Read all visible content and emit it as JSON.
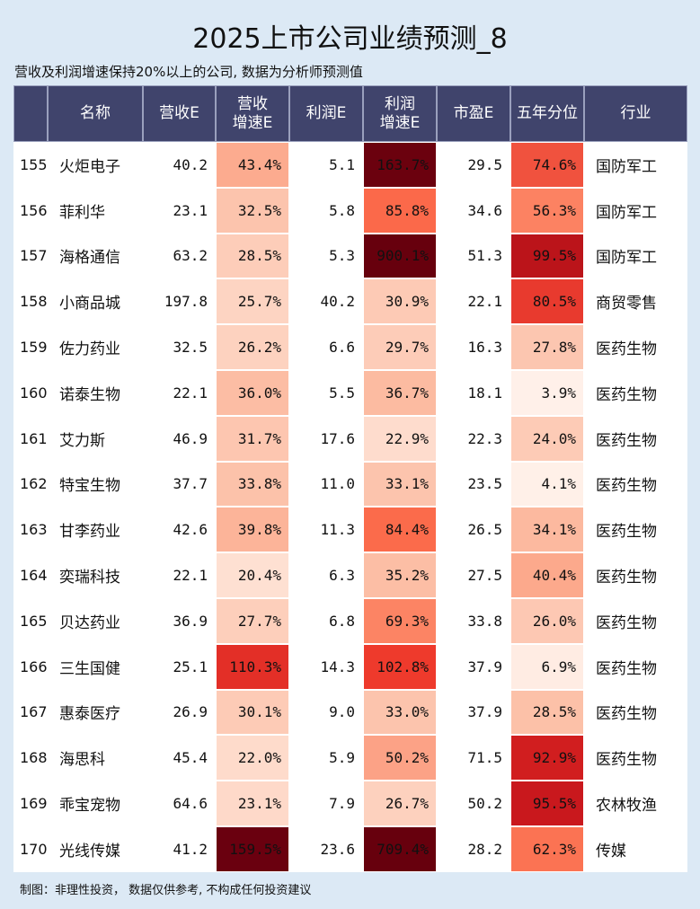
{
  "title": "2025上市公司业绩预测_8",
  "subtitle": "营收及利润增速保持20%以上的公司, 数据为分析师预测值",
  "footer": "制图：非理性投资， 数据仅供参考, 不构成任何投资建议",
  "columns": {
    "idx": "",
    "name": "名称",
    "revenue": "营收E",
    "revenue_growth_line1": "营收",
    "revenue_growth_line2": "增速E",
    "profit": "利润E",
    "profit_growth_line1": "利润",
    "profit_growth_line2": "增速E",
    "pe": "市盈E",
    "pe_pct5y": "五年分位",
    "industry": "行业"
  },
  "colors": {
    "header_bg": "#40446c",
    "page_bg": "#dce9f5"
  },
  "rows": [
    {
      "idx": "155",
      "name": "火炬电子",
      "revenue": "40.2",
      "rev_growth": "43.4%",
      "rev_growth_color": "#fcab8f",
      "profit": "5.1",
      "profit_growth": "163.7%",
      "profit_growth_color": "#6b010e",
      "pe": "29.5",
      "pe_pct": "74.6%",
      "pe_pct_color": "#f0523e",
      "industry": "国防军工"
    },
    {
      "idx": "156",
      "name": "菲利华",
      "revenue": "23.1",
      "rev_growth": "32.5%",
      "rev_growth_color": "#fcc4ad",
      "profit": "5.8",
      "profit_growth": "85.8%",
      "profit_growth_color": "#fb694a",
      "pe": "34.6",
      "pe_pct": "56.3%",
      "pe_pct_color": "#fc8262",
      "industry": "国防军工"
    },
    {
      "idx": "157",
      "name": "海格通信",
      "revenue": "63.2",
      "rev_growth": "28.5%",
      "rev_growth_color": "#fdcdb9",
      "profit": "5.3",
      "profit_growth": "900.1%",
      "profit_growth_color": "#67000d",
      "pe": "51.3",
      "pe_pct": "99.5%",
      "pe_pct_color": "#bb141a",
      "industry": "国防军工"
    },
    {
      "idx": "158",
      "name": "小商品城",
      "revenue": "197.8",
      "rev_growth": "25.7%",
      "rev_growth_color": "#fdd4c2",
      "profit": "40.2",
      "profit_growth": "30.9%",
      "profit_growth_color": "#fdcab5",
      "pe": "22.1",
      "pe_pct": "80.5%",
      "pe_pct_color": "#e83a2e",
      "industry": "商贸零售"
    },
    {
      "idx": "159",
      "name": "佐力药业",
      "revenue": "32.5",
      "rev_growth": "26.2%",
      "rev_growth_color": "#fdd2bf",
      "profit": "6.6",
      "profit_growth": "29.7%",
      "profit_growth_color": "#fdccb8",
      "pe": "16.3",
      "pe_pct": "27.8%",
      "pe_pct_color": "#fcc6b0",
      "industry": "医药生物"
    },
    {
      "idx": "160",
      "name": "诺泰生物",
      "revenue": "22.1",
      "rev_growth": "36.0%",
      "rev_growth_color": "#fcbda4",
      "profit": "5.5",
      "profit_growth": "36.7%",
      "profit_growth_color": "#fcbba1",
      "pe": "18.1",
      "pe_pct": "3.9%",
      "pe_pct_color": "#fff0e9",
      "industry": "医药生物"
    },
    {
      "idx": "161",
      "name": "艾力斯",
      "revenue": "46.9",
      "rev_growth": "31.7%",
      "rev_growth_color": "#fdc6b0",
      "profit": "17.6",
      "profit_growth": "22.9%",
      "profit_growth_color": "#fedccd",
      "pe": "22.3",
      "pe_pct": "24.0%",
      "pe_pct_color": "#fdcbb6",
      "industry": "医药生物"
    },
    {
      "idx": "162",
      "name": "特宝生物",
      "revenue": "37.7",
      "rev_growth": "33.8%",
      "rev_growth_color": "#fcc2aa",
      "profit": "11.0",
      "profit_growth": "33.1%",
      "profit_growth_color": "#fcc4ad",
      "pe": "23.5",
      "pe_pct": "4.1%",
      "pe_pct_color": "#fff0e8",
      "industry": "医药生物"
    },
    {
      "idx": "163",
      "name": "甘李药业",
      "revenue": "42.6",
      "rev_growth": "39.8%",
      "rev_growth_color": "#fcb499",
      "profit": "11.3",
      "profit_growth": "84.4%",
      "profit_growth_color": "#fb6b4b",
      "pe": "26.5",
      "pe_pct": "34.1%",
      "pe_pct_color": "#fcb99f",
      "industry": "医药生物"
    },
    {
      "idx": "164",
      "name": "奕瑞科技",
      "revenue": "22.1",
      "rev_growth": "20.4%",
      "rev_growth_color": "#fee0d2",
      "profit": "6.3",
      "profit_growth": "35.2%",
      "profit_growth_color": "#fcbea5",
      "pe": "27.5",
      "pe_pct": "40.4%",
      "pe_pct_color": "#fca98c",
      "industry": "医药生物"
    },
    {
      "idx": "165",
      "name": "贝达药业",
      "revenue": "36.9",
      "rev_growth": "27.7%",
      "rev_growth_color": "#fdcfbb",
      "profit": "6.8",
      "profit_growth": "69.3%",
      "profit_growth_color": "#fc8464",
      "pe": "33.8",
      "pe_pct": "26.0%",
      "pe_pct_color": "#fdc8b3",
      "industry": "医药生物"
    },
    {
      "idx": "166",
      "name": "三生国健",
      "revenue": "25.1",
      "rev_growth": "110.3%",
      "rev_growth_color": "#e32f27",
      "profit": "14.3",
      "profit_growth": "102.8%",
      "profit_growth_color": "#ee3a2c",
      "pe": "37.9",
      "pe_pct": "6.9%",
      "pe_pct_color": "#ffece3",
      "industry": "医药生物"
    },
    {
      "idx": "167",
      "name": "惠泰医疗",
      "revenue": "26.9",
      "rev_growth": "30.1%",
      "rev_growth_color": "#fdcbb6",
      "profit": "9.0",
      "profit_growth": "33.0%",
      "profit_growth_color": "#fcc4ad",
      "pe": "37.9",
      "pe_pct": "28.5%",
      "pe_pct_color": "#fcc1a8",
      "industry": "医药生物"
    },
    {
      "idx": "168",
      "name": "海思科",
      "revenue": "45.4",
      "rev_growth": "22.0%",
      "rev_growth_color": "#fedbcb",
      "profit": "5.9",
      "profit_growth": "50.2%",
      "profit_growth_color": "#fca286",
      "pe": "71.5",
      "pe_pct": "92.9%",
      "pe_pct_color": "#d11e1f",
      "industry": "医药生物"
    },
    {
      "idx": "169",
      "name": "乖宝宠物",
      "revenue": "64.6",
      "rev_growth": "23.1%",
      "rev_growth_color": "#fed9c9",
      "profit": "7.9",
      "profit_growth": "26.7%",
      "profit_growth_color": "#fdd1be",
      "pe": "50.2",
      "pe_pct": "95.5%",
      "pe_pct_color": "#c9181d",
      "industry": "农林牧渔"
    },
    {
      "idx": "170",
      "name": "光线传媒",
      "revenue": "41.2",
      "rev_growth": "159.5%",
      "rev_growth_color": "#6a000f",
      "profit": "23.6",
      "profit_growth": "709.4%",
      "profit_growth_color": "#67000d",
      "pe": "28.2",
      "pe_pct": "62.3%",
      "pe_pct_color": "#fb7353",
      "industry": "传媒"
    }
  ]
}
